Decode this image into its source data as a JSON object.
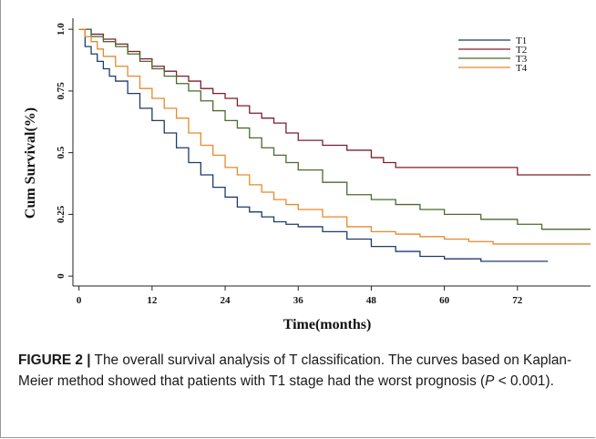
{
  "chart_data": {
    "type": "line",
    "title": "",
    "xlabel": "Time(months)",
    "ylabel": "Cum Survival(%)",
    "xlim": [
      -1,
      84
    ],
    "ylim": [
      -0.04,
      1.03
    ],
    "xticks": [
      0,
      12,
      24,
      36,
      48,
      60,
      72
    ],
    "yticks": [
      0,
      0.25,
      0.5,
      0.75,
      1.0
    ],
    "ytick_labels": [
      "0",
      "0.25",
      "0.5",
      "0.75",
      "1.0"
    ],
    "grid": false,
    "legend_position": "top-right",
    "series": [
      {
        "name": "T1",
        "color": "#1f3b6b",
        "x": [
          0,
          1,
          2,
          3,
          4,
          5,
          6,
          8,
          10,
          12,
          14,
          16,
          18,
          20,
          22,
          24,
          26,
          28,
          30,
          32,
          34,
          36,
          40,
          44,
          48,
          52,
          56,
          60,
          66,
          72,
          77
        ],
        "y": [
          1.0,
          0.93,
          0.9,
          0.87,
          0.84,
          0.81,
          0.79,
          0.74,
          0.68,
          0.63,
          0.58,
          0.52,
          0.46,
          0.41,
          0.36,
          0.32,
          0.28,
          0.26,
          0.24,
          0.22,
          0.21,
          0.2,
          0.18,
          0.15,
          0.12,
          0.1,
          0.08,
          0.07,
          0.06,
          0.06,
          0.06
        ]
      },
      {
        "name": "T2",
        "color": "#7d1f2e",
        "x": [
          0,
          2,
          4,
          6,
          8,
          10,
          12,
          14,
          16,
          18,
          20,
          22,
          24,
          26,
          28,
          30,
          32,
          34,
          36,
          40,
          44,
          48,
          50,
          52,
          56,
          60,
          66,
          72,
          84
        ],
        "y": [
          1.0,
          0.98,
          0.96,
          0.94,
          0.91,
          0.88,
          0.85,
          0.83,
          0.81,
          0.79,
          0.76,
          0.74,
          0.72,
          0.69,
          0.66,
          0.64,
          0.62,
          0.58,
          0.55,
          0.53,
          0.51,
          0.48,
          0.46,
          0.44,
          0.44,
          0.44,
          0.44,
          0.41,
          0.41
        ]
      },
      {
        "name": "T3",
        "color": "#4a6b2e",
        "x": [
          0,
          2,
          4,
          6,
          8,
          10,
          12,
          14,
          16,
          18,
          20,
          22,
          24,
          26,
          28,
          30,
          32,
          34,
          36,
          40,
          44,
          48,
          52,
          56,
          60,
          66,
          72,
          76,
          84
        ],
        "y": [
          1.0,
          0.97,
          0.95,
          0.93,
          0.9,
          0.87,
          0.84,
          0.81,
          0.78,
          0.75,
          0.71,
          0.67,
          0.63,
          0.6,
          0.56,
          0.52,
          0.49,
          0.46,
          0.43,
          0.38,
          0.33,
          0.31,
          0.29,
          0.27,
          0.25,
          0.23,
          0.21,
          0.19,
          0.19
        ]
      },
      {
        "name": "T4",
        "color": "#e8892b",
        "x": [
          0,
          1,
          2,
          3,
          4,
          6,
          8,
          10,
          12,
          14,
          16,
          18,
          20,
          22,
          24,
          26,
          28,
          30,
          32,
          34,
          36,
          40,
          44,
          48,
          52,
          56,
          60,
          64,
          68,
          72,
          84
        ],
        "y": [
          1.0,
          0.97,
          0.95,
          0.92,
          0.89,
          0.85,
          0.81,
          0.76,
          0.72,
          0.68,
          0.64,
          0.58,
          0.53,
          0.49,
          0.44,
          0.41,
          0.37,
          0.34,
          0.31,
          0.29,
          0.27,
          0.24,
          0.2,
          0.18,
          0.17,
          0.16,
          0.15,
          0.14,
          0.13,
          0.13,
          0.13
        ]
      }
    ]
  },
  "caption": {
    "label": "FIGURE 2 |",
    "text": " The overall survival analysis of T classification. The curves based on Kaplan-Meier method showed that patients with T1 stage had the worst prognosis (",
    "p_symbol": "P",
    "p_value": " < 0.001)."
  }
}
